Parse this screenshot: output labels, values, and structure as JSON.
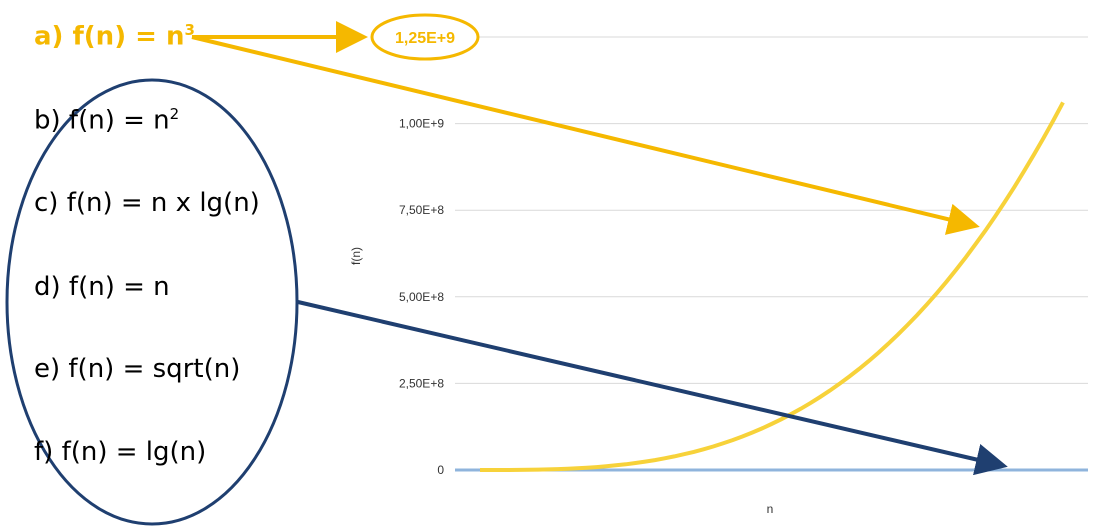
{
  "functions": [
    {
      "prefix": "a)",
      "body": "f(n) = n",
      "sup": "3"
    },
    {
      "prefix": "b)",
      "body": "f(n) = n",
      "sup": "2"
    },
    {
      "prefix": "c)",
      "body": "f(n) = n x lg(n)",
      "sup": ""
    },
    {
      "prefix": "d)",
      "body": "f(n) = n",
      "sup": ""
    },
    {
      "prefix": "e)",
      "body": "f(n) = sqrt(n)",
      "sup": ""
    },
    {
      "prefix": "f)",
      "body": "f(n) = lg(n)",
      "sup": ""
    }
  ],
  "callout": {
    "label": "1,25E+9"
  },
  "colors": {
    "highlight": "#f5b800",
    "cubic_curve": "#f7d23a",
    "flat_curves": "#8fb4dc",
    "ellipse": "#1f3f70",
    "gridline": "#d9d9d9"
  },
  "chart_data": {
    "type": "line",
    "xlabel": "n",
    "ylabel": "f(n)",
    "ylim": [
      0,
      1250000000
    ],
    "xlim": [
      0,
      1020
    ],
    "y_ticks": [
      {
        "value": 0,
        "label": "0"
      },
      {
        "value": 250000000,
        "label": "2,50E+8"
      },
      {
        "value": 500000000,
        "label": "5,00E+8"
      },
      {
        "value": 750000000,
        "label": "7,50E+8"
      },
      {
        "value": 1000000000,
        "label": "1,00E+9"
      },
      {
        "value": 1250000000,
        "label": "1,25E+9"
      }
    ],
    "grid": true,
    "series": [
      {
        "key": "n3",
        "x": [
          0,
          100,
          200,
          300,
          400,
          500,
          600,
          700,
          800,
          900,
          1000,
          1020
        ],
        "values": [
          0,
          1000000,
          8000000,
          27000000,
          64000000,
          125000000,
          216000000,
          343000000,
          512000000,
          729000000,
          1000000000,
          1061208000
        ]
      },
      {
        "key": "n2",
        "x": [
          0,
          1020
        ],
        "values": [
          0,
          1040400
        ]
      }
    ]
  }
}
